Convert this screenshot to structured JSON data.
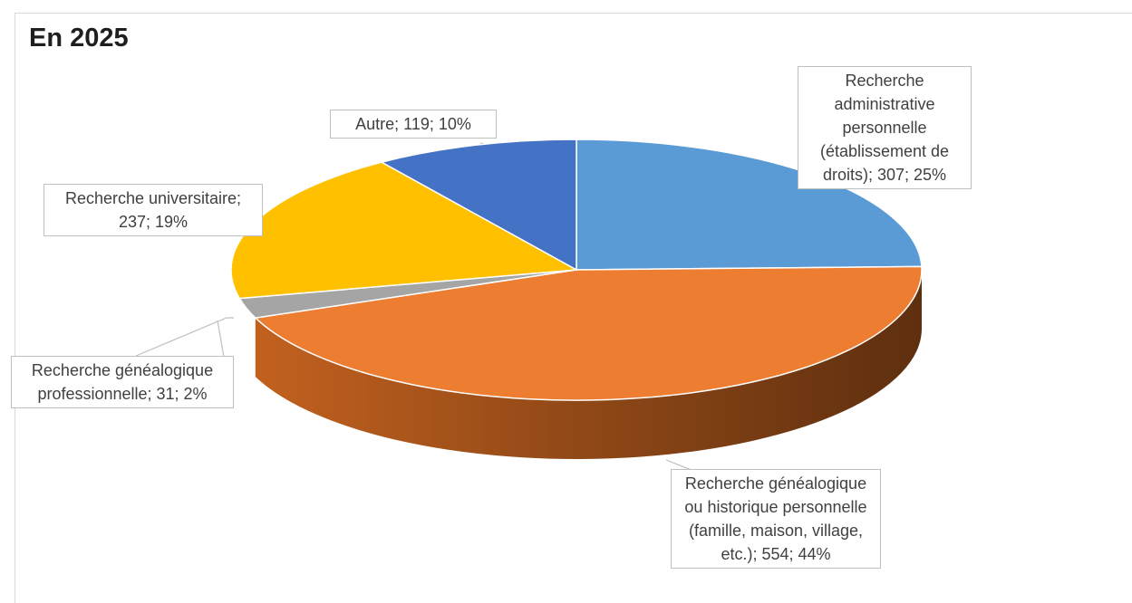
{
  "chart_data": {
    "type": "pie",
    "title": "En 2025",
    "slices": [
      {
        "label": "Recherche administrative personnelle (établissement de droits)",
        "value": 307,
        "percent": "25%",
        "color": "#5b9bd5"
      },
      {
        "label": "Recherche généalogique ou historique personnelle (famille, maison, village, etc.)",
        "value": 554,
        "percent": "44%",
        "color": "#ed7d31"
      },
      {
        "label": "Recherche généalogique professionnelle",
        "value": 31,
        "percent": "2%",
        "color": "#a5a5a5"
      },
      {
        "label": "Recherche universitaire",
        "value": 237,
        "percent": "19%",
        "color": "#ffc000"
      },
      {
        "label": "Autre",
        "value": 119,
        "percent": "10%",
        "color": "#4472c4"
      }
    ],
    "data_labels": [
      "Recherche administrative personnelle (établissement de droits); 307; 25%",
      "Recherche généalogique ou historique personnelle (famille, maison, village, etc.); 554; 44%",
      "Recherche généalogique professionnelle; 31; 2%",
      "Recherche universitaire; 237; 19%",
      "Autre; 119; 10%"
    ],
    "style": "3d-pie",
    "legend": "none"
  }
}
